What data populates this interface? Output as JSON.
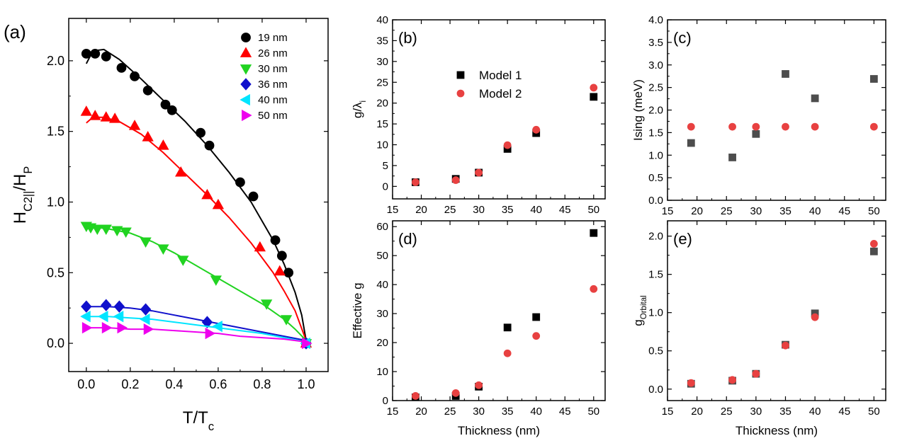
{
  "chart_data": [
    {
      "id": "a",
      "type": "scatter",
      "panel_label": "(a)",
      "xlabel": "T/T",
      "xlabel_sub": "c",
      "ylabel": "H",
      "ylabel_sub": "C2||",
      "ylabel_mid": "/H",
      "ylabel_sub2": "P",
      "xlim": [
        -0.08,
        1.1
      ],
      "ylim": [
        -0.2,
        2.3
      ],
      "xticks": [
        0.0,
        0.2,
        0.4,
        0.6,
        0.8,
        1.0
      ],
      "xtick_labels": [
        "0.0",
        "0.2",
        "0.4",
        "0.6",
        "0.8",
        "1.0"
      ],
      "yticks": [
        0.0,
        0.5,
        1.0,
        1.5,
        2.0
      ],
      "ytick_labels": [
        "0.0",
        "0.5",
        "1.0",
        "1.5",
        "2.0"
      ],
      "legend_position": "top-right",
      "series": [
        {
          "name": "19 nm",
          "color": "#000000",
          "marker": "circle",
          "x": [
            0.0,
            0.04,
            0.09,
            0.16,
            0.22,
            0.28,
            0.36,
            0.39,
            0.52,
            0.56,
            0.7,
            0.76,
            0.86,
            0.89,
            0.92,
            1.0
          ],
          "y": [
            2.05,
            2.05,
            2.03,
            1.95,
            1.89,
            1.79,
            1.69,
            1.65,
            1.49,
            1.4,
            1.14,
            1.04,
            0.73,
            0.62,
            0.5,
            0.0
          ],
          "fit": {
            "x": [
              0.0,
              0.03,
              0.08,
              0.15,
              0.25,
              0.35,
              0.45,
              0.55,
              0.65,
              0.75,
              0.85,
              0.9,
              0.95,
              0.98,
              1.0
            ],
            "y": [
              1.98,
              2.07,
              2.08,
              2.01,
              1.87,
              1.72,
              1.57,
              1.4,
              1.21,
              1.0,
              0.73,
              0.56,
              0.36,
              0.2,
              0.02
            ]
          }
        },
        {
          "name": "26 nm",
          "color": "#ff0000",
          "marker": "triangle-up",
          "x": [
            0.0,
            0.04,
            0.09,
            0.13,
            0.22,
            0.28,
            0.35,
            0.43,
            0.55,
            0.6,
            0.79,
            0.88,
            1.0
          ],
          "y": [
            1.64,
            1.61,
            1.6,
            1.59,
            1.54,
            1.46,
            1.4,
            1.21,
            1.05,
            0.98,
            0.68,
            0.51,
            0.0
          ],
          "fit": {
            "x": [
              0.0,
              0.03,
              0.08,
              0.15,
              0.25,
              0.35,
              0.45,
              0.55,
              0.65,
              0.75,
              0.85,
              0.9,
              0.95,
              1.0
            ],
            "y": [
              1.56,
              1.6,
              1.6,
              1.57,
              1.48,
              1.35,
              1.2,
              1.05,
              0.89,
              0.71,
              0.5,
              0.37,
              0.23,
              0.02
            ]
          }
        },
        {
          "name": "30 nm",
          "color": "#21d321",
          "marker": "triangle-down",
          "x": [
            0.0,
            0.02,
            0.05,
            0.09,
            0.14,
            0.18,
            0.27,
            0.35,
            0.44,
            0.59,
            0.82,
            0.91,
            1.0
          ],
          "y": [
            0.83,
            0.82,
            0.81,
            0.81,
            0.8,
            0.79,
            0.72,
            0.67,
            0.59,
            0.45,
            0.28,
            0.17,
            0.0
          ],
          "fit": {
            "x": [
              0.0,
              0.05,
              0.1,
              0.2,
              0.3,
              0.4,
              0.5,
              0.6,
              0.7,
              0.8,
              0.9,
              0.95,
              1.0
            ],
            "y": [
              0.81,
              0.82,
              0.81,
              0.78,
              0.72,
              0.64,
              0.55,
              0.46,
              0.37,
              0.28,
              0.17,
              0.1,
              0.02
            ]
          }
        },
        {
          "name": "36 nm",
          "color": "#1010cc",
          "marker": "diamond",
          "x": [
            0.0,
            0.09,
            0.15,
            0.27,
            0.55,
            1.0
          ],
          "y": [
            0.26,
            0.27,
            0.26,
            0.24,
            0.15,
            0.0
          ],
          "fit": {
            "x": [
              0.0,
              0.1,
              0.2,
              0.3,
              0.4,
              0.5,
              0.6,
              0.7,
              0.8,
              0.9,
              1.0
            ],
            "y": [
              0.26,
              0.26,
              0.25,
              0.23,
              0.2,
              0.17,
              0.14,
              0.11,
              0.08,
              0.05,
              0.02
            ]
          }
        },
        {
          "name": "40 nm",
          "color": "#00e5ff",
          "marker": "triangle-left",
          "x": [
            0.0,
            0.08,
            0.15,
            0.27,
            0.6,
            1.0
          ],
          "y": [
            0.19,
            0.19,
            0.19,
            0.17,
            0.12,
            0.0
          ],
          "fit": {
            "x": [
              0.0,
              0.1,
              0.2,
              0.3,
              0.4,
              0.5,
              0.6,
              0.7,
              0.8,
              0.9,
              1.0
            ],
            "y": [
              0.19,
              0.19,
              0.18,
              0.17,
              0.15,
              0.13,
              0.11,
              0.09,
              0.07,
              0.04,
              0.01
            ]
          }
        },
        {
          "name": "50 nm",
          "color": "#ee00ee",
          "marker": "triangle-right",
          "x": [
            0.0,
            0.09,
            0.16,
            0.28,
            0.56,
            1.0
          ],
          "y": [
            0.11,
            0.11,
            0.11,
            0.1,
            0.07,
            0.0
          ],
          "fit": {
            "x": [
              0.0,
              0.1,
              0.2,
              0.3,
              0.4,
              0.5,
              0.6,
              0.7,
              0.8,
              0.9,
              1.0
            ],
            "y": [
              0.11,
              0.11,
              0.1,
              0.1,
              0.09,
              0.08,
              0.07,
              0.05,
              0.04,
              0.03,
              0.01
            ]
          }
        }
      ]
    },
    {
      "id": "b",
      "type": "scatter",
      "panel_label": "(b)",
      "xlabel": "",
      "ylabel": "g/λ",
      "ylabel_sub": "i",
      "xlim": [
        15,
        52
      ],
      "ylim": [
        -3,
        40
      ],
      "xticks": [
        15,
        20,
        25,
        30,
        35,
        40,
        45,
        50
      ],
      "xtick_labels": [
        "15",
        "20",
        "25",
        "30",
        "35",
        "40",
        "45",
        "50"
      ],
      "yticks": [
        0,
        5,
        10,
        15,
        20,
        25,
        30,
        35,
        40
      ],
      "ytick_labels": [
        "0",
        "5",
        "10",
        "15",
        "20",
        "25",
        "30",
        "35",
        "40"
      ],
      "legend_position": "center",
      "series": [
        {
          "name": "Model 1",
          "color": "#000000",
          "marker": "square",
          "x": [
            19,
            26,
            30,
            35,
            40,
            50
          ],
          "y": [
            1.0,
            1.8,
            3.3,
            9.0,
            12.8,
            21.5
          ]
        },
        {
          "name": "Model 2",
          "color": "#e84141",
          "marker": "circle",
          "x": [
            19,
            26,
            30,
            35,
            40,
            50
          ],
          "y": [
            1.0,
            1.5,
            3.3,
            9.9,
            13.6,
            23.7
          ]
        }
      ]
    },
    {
      "id": "c",
      "type": "scatter",
      "panel_label": "(c)",
      "xlabel": "",
      "ylabel": "Ising (meV)",
      "xlim": [
        15,
        52
      ],
      "ylim": [
        0,
        4
      ],
      "xticks": [
        15,
        20,
        25,
        30,
        35,
        40,
        45,
        50
      ],
      "xtick_labels": [
        "15",
        "20",
        "25",
        "30",
        "35",
        "40",
        "45",
        "50"
      ],
      "yticks": [
        0,
        0.5,
        1,
        1.5,
        2,
        2.5,
        3,
        3.5,
        4
      ],
      "ytick_labels": [
        "0.0",
        "0.5",
        "1.0",
        "1.5",
        "2.0",
        "2.5",
        "3.0",
        "3.5",
        "4.0"
      ],
      "series": [
        {
          "name": "Model 1",
          "color": "#4d4d4d",
          "marker": "square",
          "x": [
            19,
            26,
            30,
            35,
            40,
            50
          ],
          "y": [
            1.27,
            0.95,
            1.47,
            2.8,
            2.26,
            2.69
          ]
        },
        {
          "name": "Model 2",
          "color": "#e84141",
          "marker": "circle",
          "x": [
            19,
            26,
            30,
            35,
            40,
            50
          ],
          "y": [
            1.63,
            1.63,
            1.63,
            1.63,
            1.63,
            1.63
          ]
        }
      ]
    },
    {
      "id": "d",
      "type": "scatter",
      "panel_label": "(d)",
      "xlabel": "Thickness (nm)",
      "ylabel": "Effective g",
      "xlim": [
        15,
        52
      ],
      "ylim": [
        0,
        62
      ],
      "xticks": [
        15,
        20,
        25,
        30,
        35,
        40,
        45,
        50
      ],
      "xtick_labels": [
        "15",
        "20",
        "25",
        "30",
        "35",
        "40",
        "45",
        "50"
      ],
      "yticks": [
        0,
        10,
        20,
        30,
        40,
        50,
        60
      ],
      "ytick_labels": [
        "0",
        "10",
        "20",
        "30",
        "40",
        "50",
        "60"
      ],
      "series": [
        {
          "name": "Model 1",
          "color": "#000000",
          "marker": "square",
          "x": [
            19,
            26,
            30,
            35,
            40,
            50
          ],
          "y": [
            1.1,
            1.6,
            4.8,
            25.2,
            28.8,
            57.8
          ]
        },
        {
          "name": "Model 2",
          "color": "#e84141",
          "marker": "circle",
          "x": [
            19,
            26,
            30,
            35,
            40,
            50
          ],
          "y": [
            1.6,
            2.6,
            5.3,
            16.3,
            22.3,
            38.5
          ]
        }
      ]
    },
    {
      "id": "e",
      "type": "scatter",
      "panel_label": "(e)",
      "xlabel": "Thickness (nm)",
      "ylabel": "g",
      "ylabel_sub": "Orbital",
      "xlim": [
        15,
        52
      ],
      "ylim": [
        -0.15,
        2.2
      ],
      "xticks": [
        15,
        20,
        25,
        30,
        35,
        40,
        45,
        50
      ],
      "xtick_labels": [
        "15",
        "20",
        "25",
        "30",
        "35",
        "40",
        "45",
        "50"
      ],
      "yticks": [
        0,
        0.5,
        1,
        1.5,
        2
      ],
      "ytick_labels": [
        "0.0",
        "0.5",
        "1.0",
        "1.5",
        "2.0"
      ],
      "series": [
        {
          "name": "Model 1",
          "color": "#4d4d4d",
          "marker": "square",
          "x": [
            19,
            26,
            30,
            35,
            40,
            50
          ],
          "y": [
            0.07,
            0.11,
            0.2,
            0.58,
            0.99,
            1.8
          ]
        },
        {
          "name": "Model 2",
          "color": "#e84141",
          "marker": "circle",
          "x": [
            19,
            26,
            30,
            35,
            40,
            50
          ],
          "y": [
            0.08,
            0.12,
            0.2,
            0.57,
            0.94,
            1.9
          ]
        }
      ]
    }
  ]
}
